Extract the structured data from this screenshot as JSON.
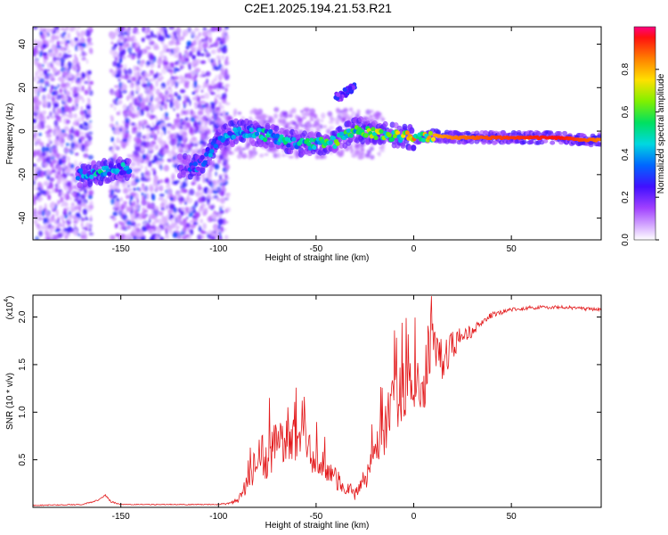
{
  "title": "C2E1.2025.194.21.53.R21",
  "colors": {
    "signal": "#e31a1c",
    "background": "#ffffff"
  },
  "chart_data": [
    {
      "type": "heatmap",
      "xlabel": "Height of straight line (km)",
      "ylabel": "Frequency (Hz)",
      "xlim": [
        -195,
        96
      ],
      "ylim": [
        -50,
        48
      ],
      "xticks": [
        -150,
        -100,
        -50,
        0,
        50
      ],
      "yticks": [
        -40,
        -20,
        0,
        20,
        40
      ],
      "colorbar": {
        "label": "Normalized spectral amplitude",
        "range": [
          0,
          1
        ],
        "ticks": [
          0.0,
          0.2,
          0.4,
          0.6,
          0.8
        ],
        "tick_labels": [
          "0.0",
          "0.2",
          "0.4",
          "0.6",
          "0.8"
        ],
        "colormap": "rainbow"
      },
      "noise_regions_km": [
        [
          -195,
          -165
        ],
        [
          -155,
          -95
        ]
      ],
      "ridge": [
        {
          "x": -170,
          "f": -20,
          "a": 0.3
        },
        {
          "x": -160,
          "f": -19,
          "a": 0.4
        },
        {
          "x": -150,
          "f": -17,
          "a": 0.35
        },
        {
          "x": -140,
          "f": -17,
          "a": 0.3
        },
        {
          "x": -110,
          "f": -16,
          "a": 0.3
        },
        {
          "x": -100,
          "f": -4,
          "a": 0.3
        },
        {
          "x": -90,
          "f": 0,
          "a": 0.45
        },
        {
          "x": -80,
          "f": -1,
          "a": 0.5
        },
        {
          "x": -70,
          "f": -3,
          "a": 0.5
        },
        {
          "x": -60,
          "f": -6,
          "a": 0.5
        },
        {
          "x": -50,
          "f": -6,
          "a": 0.55
        },
        {
          "x": -40,
          "f": -5,
          "a": 0.6
        },
        {
          "x": -30,
          "f": 1,
          "a": 0.65
        },
        {
          "x": -20,
          "f": -1,
          "a": 0.7
        },
        {
          "x": -10,
          "f": -2,
          "a": 0.7
        },
        {
          "x": 0,
          "f": -3,
          "a": 0.8
        },
        {
          "x": 10,
          "f": -2,
          "a": 0.85
        },
        {
          "x": 20,
          "f": -3,
          "a": 0.9
        },
        {
          "x": 40,
          "f": -3,
          "a": 0.95
        },
        {
          "x": 60,
          "f": -3,
          "a": 0.98
        },
        {
          "x": 75,
          "f": -3,
          "a": 1.0
        },
        {
          "x": 85,
          "f": -4,
          "a": 0.95
        },
        {
          "x": 96,
          "f": -4,
          "a": 0.9
        }
      ],
      "branch": [
        {
          "x": -40,
          "f": 15,
          "a": 0.25
        },
        {
          "x": -35,
          "f": 18,
          "a": 0.3
        },
        {
          "x": -30,
          "f": 20,
          "a": 0.25
        }
      ]
    },
    {
      "type": "line",
      "xlabel": "Height of straight line (km)",
      "ylabel": "SNR (10 * v/v)",
      "y_multiplier_label": "(x10",
      "y_multiplier_exp": "4",
      "y_multiplier_close": ")",
      "xlim": [
        -195,
        96
      ],
      "ylim": [
        0,
        2.23
      ],
      "xticks": [
        -150,
        -100,
        -50,
        0,
        50
      ],
      "yticks": [
        0.5,
        1.0,
        1.5,
        2.0
      ],
      "ytick_labels": [
        "0.5",
        "1.0",
        "1.5",
        "2.0"
      ],
      "series": [
        {
          "x": [
            -195,
            -170,
            -162,
            -158,
            -155,
            -150,
            -100,
            -90,
            -85,
            -80,
            -75,
            -70,
            -65,
            -60,
            -55,
            -50,
            -45,
            -40,
            -35,
            -30,
            -25,
            -20,
            -15,
            -10,
            -5,
            0,
            5,
            8,
            12,
            15,
            20,
            25,
            30,
            35,
            40,
            50,
            60,
            70,
            80,
            90,
            96
          ],
          "values": [
            0.02,
            0.03,
            0.07,
            0.13,
            0.06,
            0.03,
            0.03,
            0.06,
            0.25,
            0.55,
            0.5,
            0.65,
            0.8,
            0.7,
            0.6,
            0.5,
            0.4,
            0.3,
            0.2,
            0.15,
            0.3,
            0.5,
            0.85,
            1.1,
            1.25,
            1.35,
            1.2,
            1.7,
            1.55,
            1.5,
            1.7,
            1.8,
            1.85,
            1.95,
            2.02,
            2.08,
            2.1,
            2.1,
            2.1,
            2.08,
            2.08
          ],
          "noise": [
            0.005,
            0.005,
            0.01,
            0.01,
            0.01,
            0.005,
            0.005,
            0.03,
            0.12,
            0.22,
            0.25,
            0.28,
            0.3,
            0.25,
            0.22,
            0.2,
            0.15,
            0.12,
            0.08,
            0.08,
            0.12,
            0.2,
            0.3,
            0.35,
            0.35,
            0.3,
            0.3,
            0.4,
            0.3,
            0.25,
            0.15,
            0.1,
            0.06,
            0.04,
            0.03,
            0.02,
            0.02,
            0.02,
            0.02,
            0.02,
            0.02
          ]
        }
      ]
    }
  ]
}
